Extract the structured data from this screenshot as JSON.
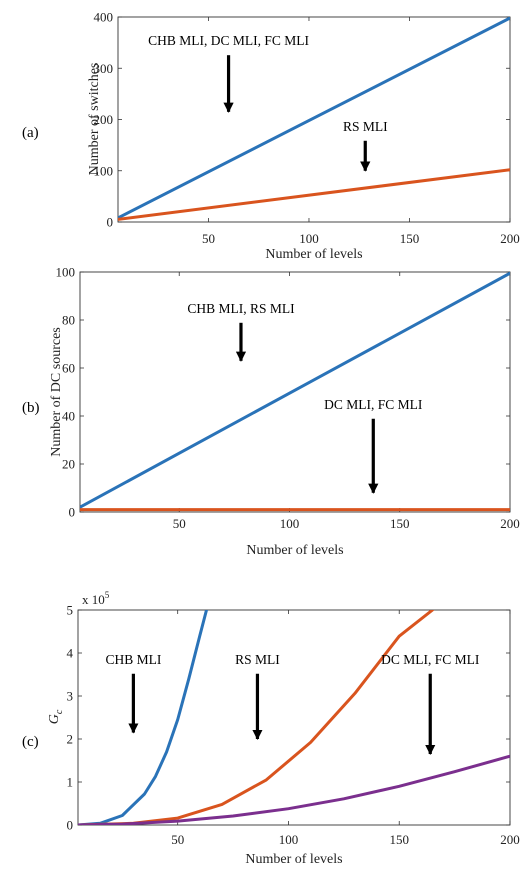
{
  "chart_data": [
    {
      "type": "line",
      "panel_label": "(a)",
      "xlabel": "Number of levels",
      "ylabel": "Number of switches",
      "xlim": [
        5,
        200
      ],
      "ylim": [
        0,
        400
      ],
      "xticks": [
        50,
        100,
        150,
        200
      ],
      "yticks": [
        0,
        100,
        200,
        300,
        400
      ],
      "series": [
        {
          "color": "#2a73b8",
          "x": [
            5,
            200
          ],
          "y": [
            8,
            398
          ]
        },
        {
          "color": "#d9541e",
          "x": [
            5,
            200
          ],
          "y": [
            5,
            102
          ]
        }
      ],
      "annotations": [
        {
          "text": "CHB MLI, DC MLI, FC MLI",
          "x": 60,
          "y": 345,
          "arrow_to": [
            60,
            215
          ]
        },
        {
          "text": "RS MLI",
          "x": 128,
          "y": 178,
          "arrow_to": [
            128,
            100
          ]
        }
      ]
    },
    {
      "type": "line",
      "panel_label": "(b)",
      "xlabel": "Number of levels",
      "ylabel": "Number of DC sources",
      "xlim": [
        5,
        200
      ],
      "ylim": [
        0,
        100
      ],
      "xticks": [
        50,
        100,
        150,
        200
      ],
      "yticks": [
        0,
        20,
        40,
        60,
        80,
        100
      ],
      "series": [
        {
          "color": "#2a73b8",
          "x": [
            5,
            200
          ],
          "y": [
            2,
            99.5
          ]
        },
        {
          "color": "#d9541e",
          "x": [
            5,
            200
          ],
          "y": [
            1,
            1
          ]
        }
      ],
      "annotations": [
        {
          "text": "CHB MLI, RS MLI",
          "x": 78,
          "y": 83,
          "arrow_to": [
            78,
            63
          ]
        },
        {
          "text": "DC MLI, FC MLI",
          "x": 138,
          "y": 43,
          "arrow_to": [
            138,
            8
          ]
        }
      ]
    },
    {
      "type": "line",
      "panel_label": "(c)",
      "xlabel": "Number of levels",
      "ylabel": "Gc",
      "scale_label": "x 10",
      "scale_exponent": "5",
      "xlim": [
        5,
        200
      ],
      "ylim": [
        0,
        5
      ],
      "xticks": [
        50,
        100,
        150,
        200
      ],
      "yticks": [
        0,
        1,
        2,
        3,
        4,
        5
      ],
      "series": [
        {
          "color": "#2a73b8",
          "x": [
            5,
            15,
            25,
            35,
            40,
            45,
            50,
            55,
            60,
            63
          ],
          "y": [
            0,
            0.04,
            0.22,
            0.72,
            1.13,
            1.7,
            2.45,
            3.4,
            4.4,
            5.0
          ]
        },
        {
          "color": "#d9541e",
          "x": [
            5,
            30,
            50,
            70,
            90,
            110,
            130,
            150,
            165
          ],
          "y": [
            0,
            0.04,
            0.16,
            0.48,
            1.05,
            1.92,
            3.06,
            4.39,
            5.0
          ]
        },
        {
          "color": "#7b2f8e",
          "x": [
            5,
            25,
            50,
            75,
            100,
            125,
            150,
            175,
            200
          ],
          "y": [
            0,
            0.02,
            0.09,
            0.21,
            0.38,
            0.61,
            0.9,
            1.24,
            1.6
          ]
        }
      ],
      "annotations": [
        {
          "text": "CHB MLI",
          "x": 30,
          "y": 3.75,
          "arrow_to": [
            30,
            2.15
          ]
        },
        {
          "text": "RS MLI",
          "x": 86,
          "y": 3.75,
          "arrow_to": [
            86,
            2.0
          ]
        },
        {
          "text": "DC MLI, FC MLI",
          "x": 164,
          "y": 3.75,
          "arrow_to": [
            164,
            1.65
          ]
        }
      ]
    }
  ]
}
